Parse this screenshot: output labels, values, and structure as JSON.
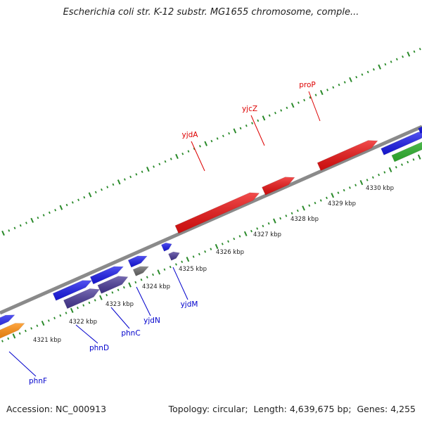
{
  "title": "Escherichia coli str. K-12 substr. MG1655 chromosome, comple...",
  "footer": {
    "accession_label": "Accession:",
    "accession_value": "NC_000913",
    "topology_label": "Topology:",
    "topology_value": "circular",
    "length_label": "Length:",
    "length_value": "4,639,675 bp",
    "genes_label": "Genes:",
    "genes_value": "4,255"
  },
  "colors": {
    "backbone": "#8a8a8a",
    "tick": "#2a8a2a",
    "red_gene": "#ee1111",
    "blue_gene": "#1a1aee",
    "purple_gene": "#4a3a9a",
    "gray_gene": "#6a6a6a",
    "green_gene": "#33bb33",
    "orange_gene": "#ff8800",
    "red_label": "#dd0000",
    "blue_label": "#0000cc"
  },
  "scale_ticks": [
    "4321 kbp",
    "4322 kbp",
    "4323 kbp",
    "4324 kbp",
    "4325 kbp",
    "4326 kbp",
    "4327 kbp",
    "4328 kbp",
    "4329 kbp",
    "4330 kbp"
  ],
  "gene_labels_red": [
    "yjdA",
    "yjcZ",
    "proP"
  ],
  "gene_labels_blue": [
    "phnF",
    "phnD",
    "phnC",
    "yjdN",
    "yjdM"
  ]
}
